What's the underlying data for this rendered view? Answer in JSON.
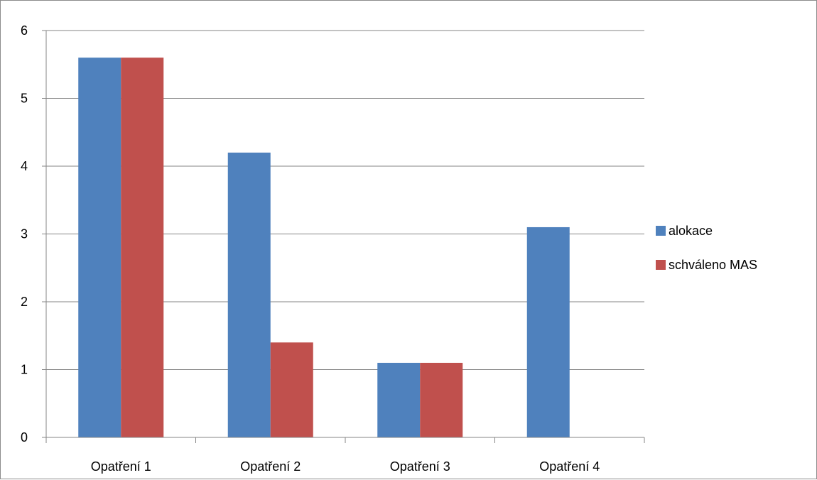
{
  "chart_data": {
    "type": "bar",
    "title": "",
    "xlabel": "",
    "ylabel": "",
    "categories": [
      "Opatření 1",
      "Opatření 2",
      "Opatření 3",
      "Opatření 4"
    ],
    "series": [
      {
        "name": "alokace",
        "color": "#4f81bd",
        "values": [
          5.6,
          4.2,
          1.1,
          3.1
        ]
      },
      {
        "name": "schváleno MAS",
        "color": "#c0504d",
        "values": [
          5.6,
          1.4,
          1.1,
          0
        ]
      }
    ],
    "ylim": [
      0,
      6
    ],
    "yticks": [
      "0",
      "1",
      "2",
      "3",
      "4",
      "5",
      "6"
    ],
    "grid": true,
    "legend_position": "right",
    "gridline_color": "#868686"
  }
}
